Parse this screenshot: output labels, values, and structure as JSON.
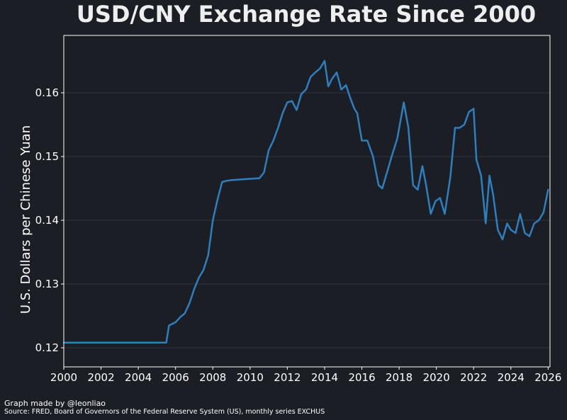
{
  "chart_data": {
    "type": "line",
    "title": "USD/CNY Exchange Rate Since 2000",
    "xlabel": "",
    "ylabel": "U.S. Dollars per Chinese Yuan",
    "xlim": [
      2000,
      2026.1
    ],
    "ylim": [
      0.117,
      0.169
    ],
    "x_ticks": [
      2000,
      2002,
      2004,
      2006,
      2008,
      2010,
      2012,
      2014,
      2016,
      2018,
      2020,
      2022,
      2024,
      2026
    ],
    "y_ticks": [
      0.12,
      0.13,
      0.14,
      0.15,
      0.16
    ],
    "y_tick_labels": [
      "0.12",
      "0.13",
      "0.14",
      "0.15",
      "0.16"
    ],
    "grid": "horizontal",
    "line_color": "#2e7fbf",
    "series": [
      {
        "x": [
          2000,
          2005.5,
          2005.65,
          2006,
          2006.25,
          2006.5,
          2006.75,
          2007,
          2007.25,
          2007.5,
          2007.75,
          2008,
          2008.25,
          2008.5,
          2008.75,
          2009,
          2009.5,
          2010,
          2010.5,
          2010.75,
          2011,
          2011.25,
          2011.5,
          2011.75,
          2012,
          2012.25,
          2012.5,
          2012.75,
          2013,
          2013.25,
          2013.5,
          2013.75,
          2014,
          2014.2,
          2014.4,
          2014.65,
          2014.9,
          2015.15,
          2015.4,
          2015.6,
          2015.75,
          2016,
          2016.3,
          2016.6,
          2016.9,
          2017.1,
          2017.3,
          2017.6,
          2017.9,
          2018.1,
          2018.25,
          2018.5,
          2018.75,
          2019,
          2019.25,
          2019.45,
          2019.7,
          2019.95,
          2020.2,
          2020.45,
          2020.75,
          2021,
          2021.25,
          2021.5,
          2021.75,
          2022,
          2022.15,
          2022.4,
          2022.65,
          2022.85,
          2023.05,
          2023.3,
          2023.55,
          2023.8,
          2024,
          2024.25,
          2024.5,
          2024.75,
          2025,
          2025.25,
          2025.5,
          2025.75,
          2026
        ],
        "y": [
          0.1208,
          0.1208,
          0.1235,
          0.124,
          0.1248,
          0.1254,
          0.127,
          0.1292,
          0.131,
          0.1322,
          0.1345,
          0.14,
          0.1432,
          0.146,
          0.1462,
          0.1463,
          0.1464,
          0.1465,
          0.1466,
          0.1475,
          0.151,
          0.1525,
          0.1545,
          0.1568,
          0.1585,
          0.1587,
          0.1573,
          0.1598,
          0.1605,
          0.1625,
          0.1632,
          0.1638,
          0.165,
          0.161,
          0.1622,
          0.1632,
          0.1605,
          0.1612,
          0.159,
          0.1575,
          0.1568,
          0.1525,
          0.1525,
          0.15,
          0.1455,
          0.145,
          0.147,
          0.15,
          0.1528,
          0.156,
          0.1585,
          0.1545,
          0.1455,
          0.1448,
          0.1485,
          0.1455,
          0.141,
          0.143,
          0.1435,
          0.141,
          0.1468,
          0.1545,
          0.1545,
          0.155,
          0.157,
          0.1575,
          0.1495,
          0.147,
          0.1395,
          0.147,
          0.144,
          0.1385,
          0.137,
          0.1395,
          0.1385,
          0.138,
          0.141,
          0.138,
          0.1375,
          0.1395,
          0.14,
          0.1412,
          0.1448
        ]
      }
    ]
  },
  "footer": {
    "credit": "Graph made by @leonliao",
    "source": "Source: FRED, Board of Governors of the Federal Reserve System (US), monthly series EXCHUS"
  }
}
